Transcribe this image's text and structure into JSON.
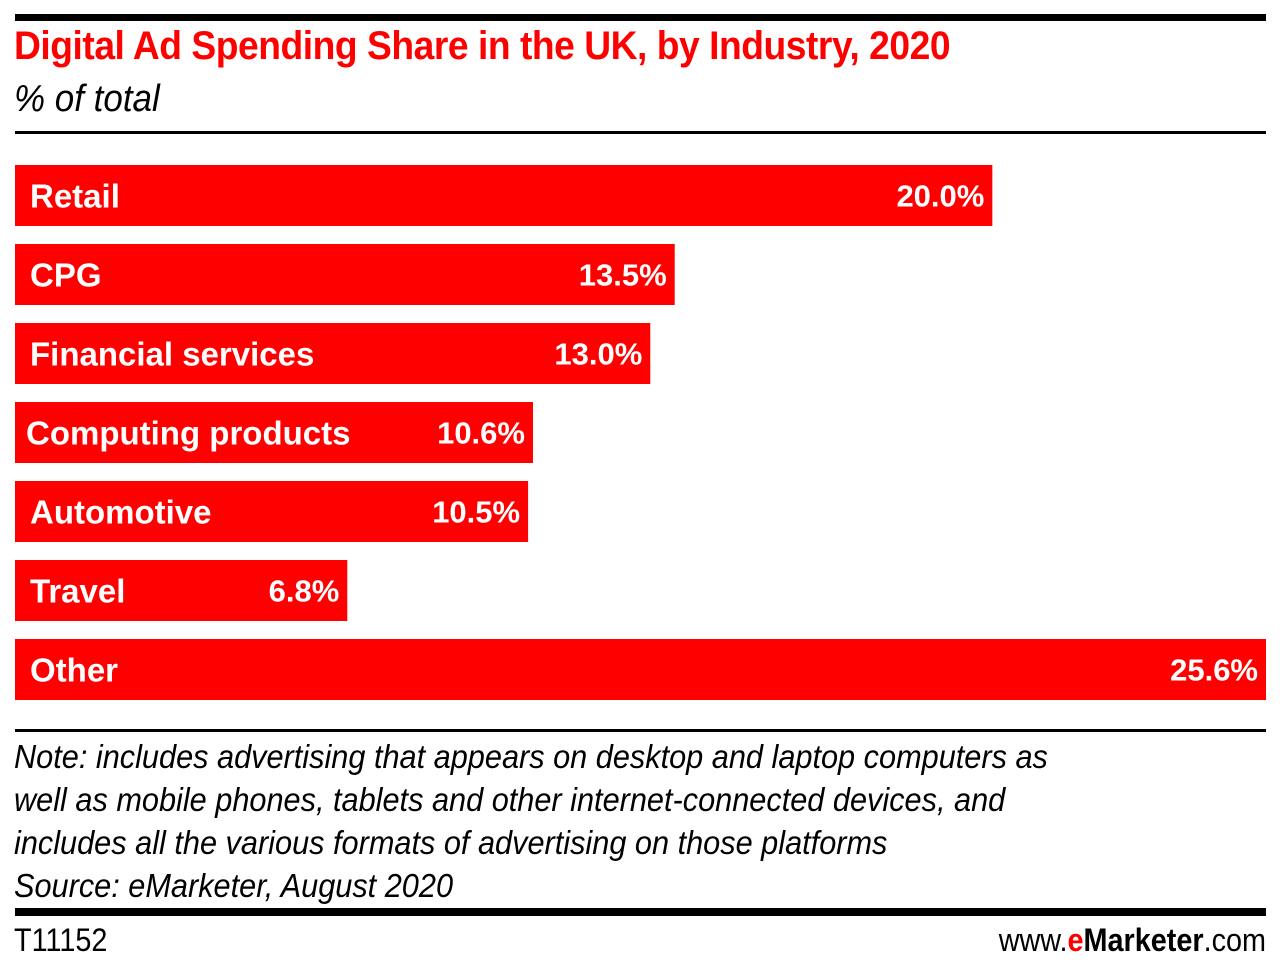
{
  "header": {
    "title": "Digital Ad Spending Share in the UK, by Industry, 2020",
    "subtitle": "% of total"
  },
  "chart_data": {
    "type": "bar",
    "orientation": "horizontal",
    "title": "Digital Ad Spending Share in the UK, by Industry, 2020",
    "subtitle": "% of total",
    "xlabel": "",
    "ylabel": "",
    "unit": "%",
    "categories": [
      "Retail",
      "CPG",
      "Financial services",
      "Computing products",
      "Automotive",
      "Travel",
      "Other"
    ],
    "values": [
      20.0,
      13.5,
      13.0,
      10.6,
      10.5,
      6.8,
      25.6
    ],
    "data_labels": [
      "20.0%",
      "13.5%",
      "13.0%",
      "10.6%",
      "10.5%",
      "6.8%",
      "25.6%"
    ],
    "xlim": [
      0,
      25.6
    ],
    "grid": false,
    "legend": "none",
    "colors": {
      "bar": "#ff0000",
      "label_inside": "#ffffff",
      "label_outside": "#000000"
    }
  },
  "footer": {
    "note_lines": [
      "Note: includes advertising that appears on desktop and laptop computers as",
      "well as mobile phones, tablets and other internet-connected devices, and",
      "includes all the various formats of advertising on those platforms"
    ],
    "source": "Source: eMarketer, August 2020",
    "chart_id": "T11152",
    "brand": {
      "prefix": "www.",
      "e": "e",
      "name": "Marketer",
      "suffix": ".com"
    }
  },
  "colors": {
    "accent": "#ff0000",
    "text": "#000000",
    "background": "#ffffff"
  }
}
